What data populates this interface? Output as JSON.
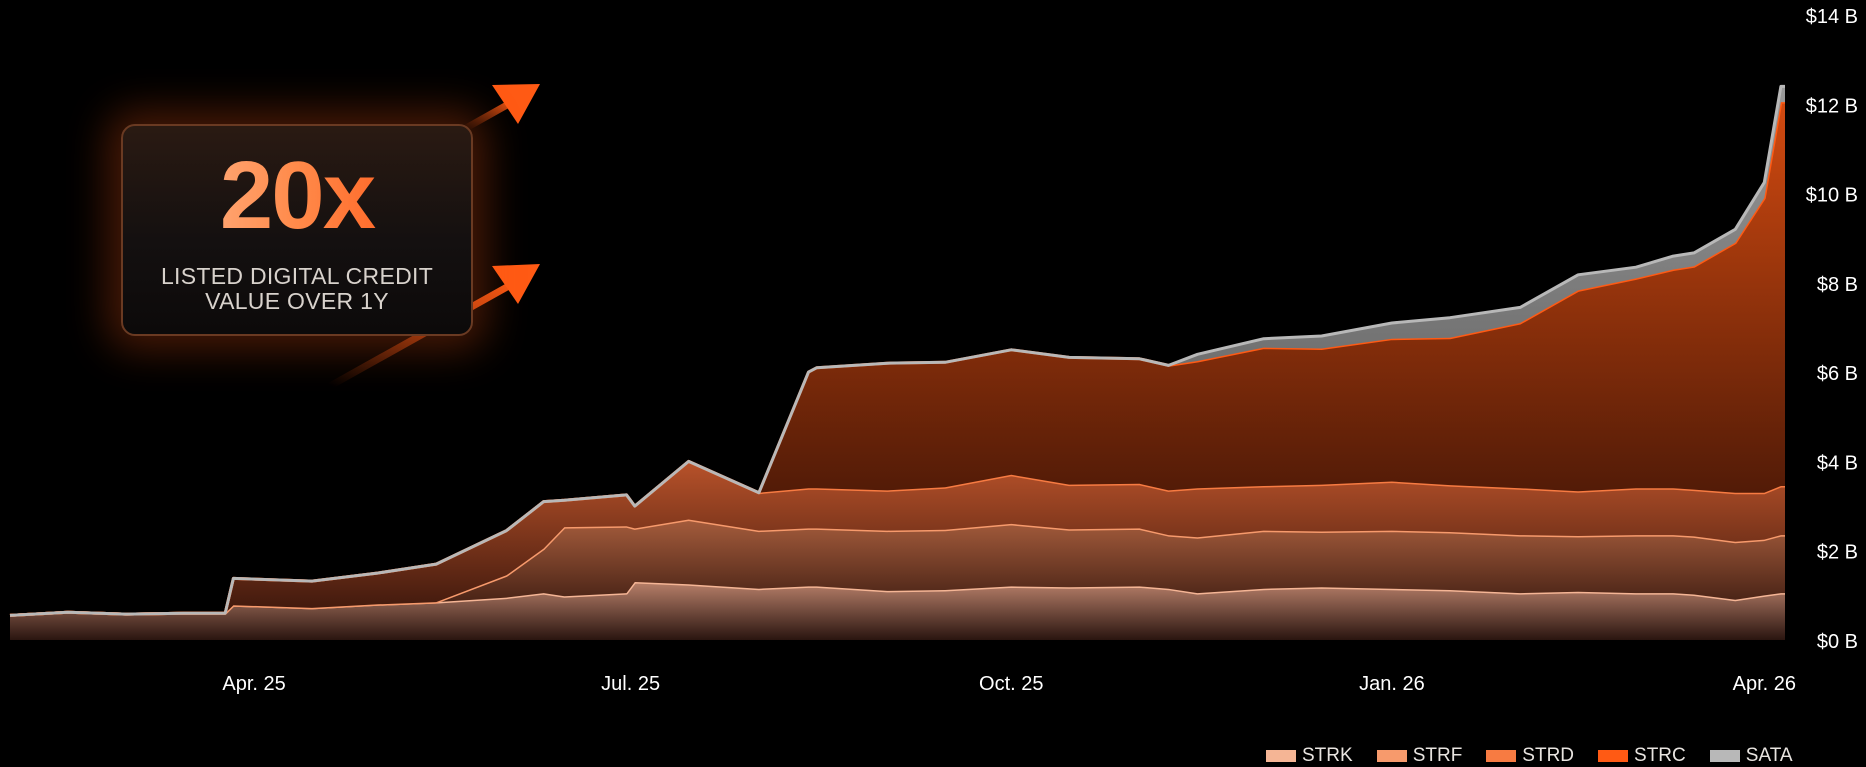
{
  "callout": {
    "multiplier": "20x",
    "line1": "LISTED DIGITAL CREDIT",
    "line2": "VALUE OVER 1Y"
  },
  "legend": [
    {
      "name": "STRK",
      "color": "#f5b595"
    },
    {
      "name": "STRF",
      "color": "#f79a6c"
    },
    {
      "name": "STRD",
      "color": "#f77b42"
    },
    {
      "name": "STRC",
      "color": "#ff5a14"
    },
    {
      "name": "SATA",
      "color": "#b8b8b8"
    }
  ],
  "chart_data": {
    "type": "area",
    "stacked": true,
    "title": "",
    "xlabel": "",
    "ylabel": "",
    "x_ticks": [
      "Apr. 25",
      "Jul. 25",
      "Oct. 25",
      "Jan. 26",
      "Apr. 26"
    ],
    "y_ticks": [
      "$0 B",
      "$2 B",
      "$4 B",
      "$6 B",
      "$8 B",
      "$10 B",
      "$12 B",
      "$14 B"
    ],
    "ylim": [
      0,
      14
    ],
    "y_unit": "$ B",
    "x": [
      "2025-02-01",
      "2025-02-15",
      "2025-03-01",
      "2025-03-15",
      "2025-03-25",
      "2025-03-27",
      "2025-04-15",
      "2025-05-01",
      "2025-05-15",
      "2025-06-01",
      "2025-06-10",
      "2025-06-15",
      "2025-06-30",
      "2025-07-02",
      "2025-07-15",
      "2025-08-01",
      "2025-08-13",
      "2025-08-15",
      "2025-09-01",
      "2025-09-15",
      "2025-10-01",
      "2025-10-15",
      "2025-11-01",
      "2025-11-08",
      "2025-11-15",
      "2025-12-01",
      "2025-12-15",
      "2026-01-01",
      "2026-01-15",
      "2026-02-01",
      "2026-02-15",
      "2026-03-01",
      "2026-03-10",
      "2026-03-15",
      "2026-03-25",
      "2026-04-01",
      "2026-04-05",
      "2026-04-06"
    ],
    "series": [
      {
        "name": "STRK",
        "values": [
          0.55,
          0.62,
          0.58,
          0.6,
          0.6,
          0.78,
          0.72,
          0.8,
          0.85,
          0.95,
          1.05,
          0.98,
          1.05,
          1.3,
          1.25,
          1.15,
          1.2,
          1.2,
          1.1,
          1.12,
          1.2,
          1.18,
          1.2,
          1.15,
          1.05,
          1.15,
          1.18,
          1.15,
          1.12,
          1.05,
          1.08,
          1.05,
          1.05,
          1.02,
          0.9,
          1.0,
          1.05,
          1.05
        ]
      },
      {
        "name": "STRF",
        "values": [
          0,
          0,
          0,
          0,
          0,
          0,
          0,
          0,
          0,
          0.5,
          1.0,
          1.55,
          1.5,
          1.2,
          1.45,
          1.3,
          1.3,
          1.3,
          1.35,
          1.35,
          1.4,
          1.3,
          1.3,
          1.2,
          1.25,
          1.3,
          1.25,
          1.3,
          1.3,
          1.3,
          1.25,
          1.3,
          1.3,
          1.3,
          1.3,
          1.25,
          1.3,
          1.3
        ]
      },
      {
        "name": "STRD",
        "values": [
          0,
          0,
          0,
          0,
          0,
          0.6,
          0.6,
          0.7,
          0.85,
          1.0,
          1.05,
          0.6,
          0.7,
          0.5,
          1.3,
          0.85,
          0.9,
          0.9,
          0.9,
          0.95,
          1.1,
          1.0,
          1.0,
          1.0,
          1.1,
          1.0,
          1.05,
          1.1,
          1.05,
          1.05,
          1.0,
          1.05,
          1.05,
          1.05,
          1.1,
          1.05,
          1.1,
          1.1
        ]
      },
      {
        "name": "STRC",
        "values": [
          0,
          0,
          0,
          0,
          0,
          0,
          0,
          0,
          0,
          0,
          0,
          0,
          0,
          0,
          0,
          0,
          2.6,
          2.7,
          2.85,
          2.8,
          2.8,
          2.85,
          2.8,
          2.8,
          2.85,
          3.1,
          3.05,
          3.2,
          3.3,
          3.7,
          4.5,
          4.7,
          4.9,
          5.0,
          5.6,
          6.6,
          8.6,
          8.6
        ]
      },
      {
        "name": "SATA",
        "values": [
          0,
          0,
          0,
          0,
          0,
          0,
          0,
          0,
          0,
          0,
          0,
          0,
          0,
          0,
          0,
          0,
          0,
          0,
          0,
          0,
          0,
          0,
          0,
          0,
          0.15,
          0.2,
          0.28,
          0.35,
          0.45,
          0.35,
          0.35,
          0.25,
          0.3,
          0.3,
          0.3,
          0.35,
          0.35,
          0.35
        ]
      }
    ],
    "grid": false,
    "legend_position": "bottom-right",
    "annotation": "20x LISTED DIGITAL CREDIT VALUE OVER 1Y"
  }
}
